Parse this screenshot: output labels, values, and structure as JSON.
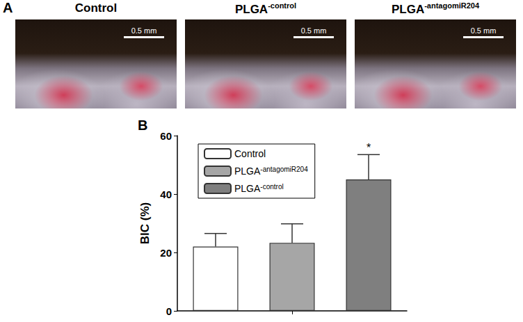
{
  "panel_a": {
    "label": "A",
    "images": [
      {
        "title": "Control",
        "scale_bar": "0.5 mm"
      },
      {
        "title": "PLGA-control",
        "scale_bar": "0.5 mm"
      },
      {
        "title": "PLGA-antagomiR204",
        "scale_bar": "0.5 mm"
      }
    ]
  },
  "chart_data": {
    "type": "bar",
    "title": "B",
    "y_label": "BIC (%)",
    "categories": [
      null,
      null,
      null
    ],
    "series": [
      {
        "name": "Control",
        "color": "#ffffff",
        "values": [
          22,
          null,
          null
        ],
        "errors": [
          4.5,
          null,
          null
        ]
      },
      {
        "name": "PLGA-antagomiR204",
        "color": "#a6a6a6",
        "values": [
          null,
          23.3,
          null
        ],
        "errors": [
          null,
          6.5,
          null
        ]
      },
      {
        "name": "PLGA-control",
        "color": "#7f7f7f",
        "values": [
          null,
          null,
          45
        ],
        "errors": [
          null,
          null,
          8.5
        ]
      }
    ],
    "significance": [
      null,
      null,
      "*"
    ],
    "ylim": [
      0,
      60
    ],
    "yticks": [
      0,
      20,
      40,
      60
    ],
    "grid": false,
    "legend": "upper left",
    "tick_labels": "y"
  }
}
